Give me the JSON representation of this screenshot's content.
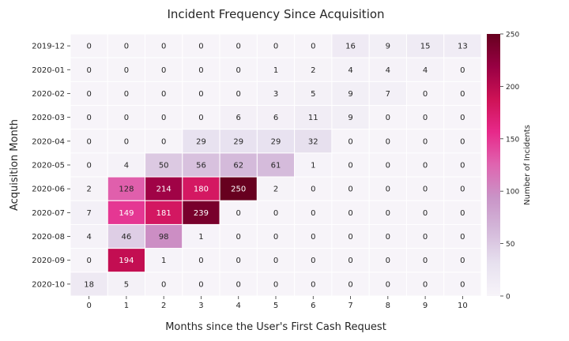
{
  "chart_data": {
    "type": "heatmap",
    "title": "Incident Frequency Since Acquisition",
    "xlabel": "Months since the User's First Cash Request",
    "ylabel": "Acquisition Month",
    "x": [
      "0",
      "1",
      "2",
      "3",
      "4",
      "5",
      "6",
      "7",
      "8",
      "9",
      "10"
    ],
    "y": [
      "2019-12",
      "2020-01",
      "2020-02",
      "2020-03",
      "2020-04",
      "2020-05",
      "2020-06",
      "2020-07",
      "2020-08",
      "2020-09",
      "2020-10"
    ],
    "values": [
      [
        0,
        0,
        0,
        0,
        0,
        0,
        0,
        16,
        9,
        15,
        13
      ],
      [
        0,
        0,
        0,
        0,
        0,
        1,
        2,
        4,
        4,
        4,
        0
      ],
      [
        0,
        0,
        0,
        0,
        0,
        3,
        5,
        9,
        7,
        0,
        0
      ],
      [
        0,
        0,
        0,
        0,
        6,
        6,
        11,
        9,
        0,
        0,
        0
      ],
      [
        0,
        0,
        0,
        29,
        29,
        29,
        32,
        0,
        0,
        0,
        0
      ],
      [
        0,
        4,
        50,
        56,
        62,
        61,
        1,
        0,
        0,
        0,
        0
      ],
      [
        2,
        128,
        214,
        180,
        250,
        2,
        0,
        0,
        0,
        0,
        0
      ],
      [
        7,
        149,
        181,
        239,
        0,
        0,
        0,
        0,
        0,
        0,
        0
      ],
      [
        4,
        46,
        98,
        1,
        0,
        0,
        0,
        0,
        0,
        0,
        0
      ],
      [
        0,
        194,
        1,
        0,
        0,
        0,
        0,
        0,
        0,
        0,
        0
      ],
      [
        18,
        5,
        0,
        0,
        0,
        0,
        0,
        0,
        0,
        0,
        0
      ]
    ],
    "colorbar": {
      "label": "Number of Incidents",
      "range": [
        0,
        250
      ],
      "ticks": [
        "0",
        "50",
        "100",
        "150",
        "200",
        "250"
      ],
      "colormap": "PuRd",
      "colors": [
        "#f7f4f9",
        "#e7e1ef",
        "#d4b9da",
        "#c994c7",
        "#df65b0",
        "#e7298a",
        "#ce1256",
        "#980043",
        "#67001f"
      ]
    },
    "grid": false
  }
}
